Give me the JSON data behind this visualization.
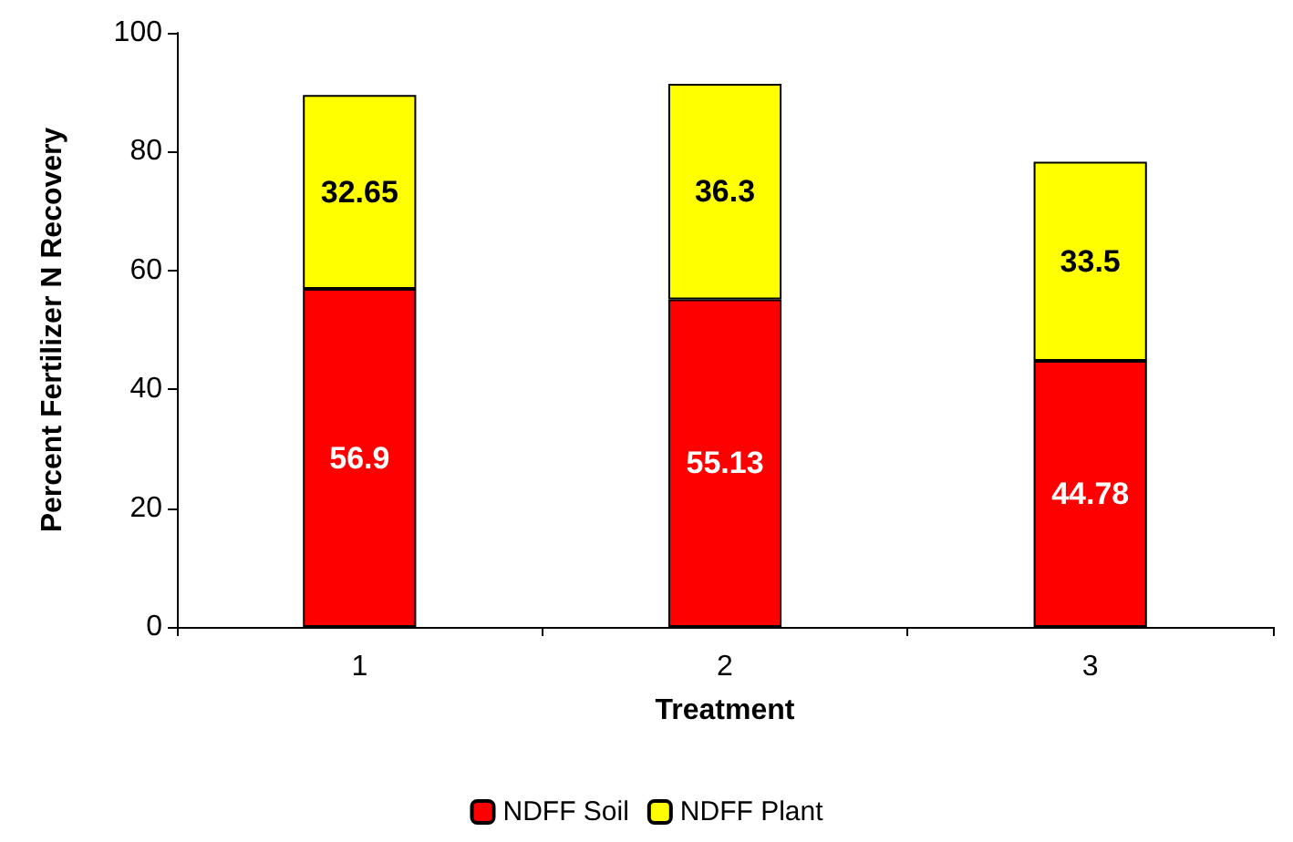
{
  "chart_data": {
    "type": "bar",
    "stacked": true,
    "xlabel": "Treatment",
    "ylabel": "Percent Fertilizer N Recovery",
    "categories": [
      "1",
      "2",
      "3"
    ],
    "series": [
      {
        "name": "NDFF Soil",
        "color": "#ff0000",
        "values": [
          56.9,
          55.13,
          44.78
        ]
      },
      {
        "name": "NDFF Plant",
        "color": "#ffff00",
        "values": [
          32.65,
          36.3,
          33.5
        ]
      }
    ],
    "ylim": [
      0,
      100
    ],
    "yticks": [
      0,
      20,
      40,
      60,
      80,
      100
    ],
    "grid": false,
    "legend": "bottom",
    "data_labels": true
  }
}
